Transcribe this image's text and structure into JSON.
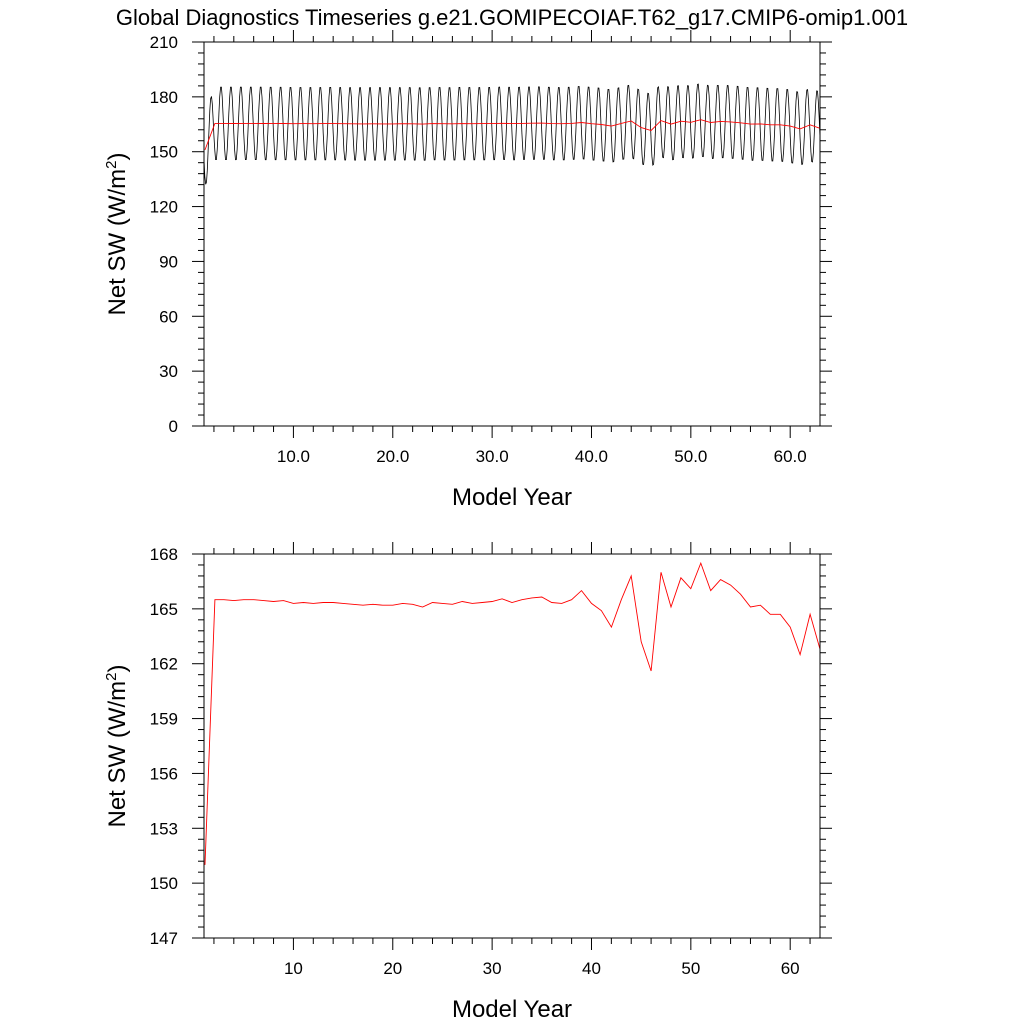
{
  "title": "Global Diagnostics Timeseries g.e21.GOMIPECOIAF.T62_g17.CMIP6-omip1.001",
  "chart_data": [
    {
      "type": "line",
      "ylabel": "Net SW (W/m",
      "ylabel_sup": "2",
      "ylabel_close": ")",
      "xlabel": "Model Year",
      "xlim": [
        1,
        63
      ],
      "ylim": [
        0,
        210
      ],
      "x_ticks": [
        10,
        20,
        30,
        40,
        50,
        60
      ],
      "x_tick_labels": [
        "10.0",
        "20.0",
        "30.0",
        "40.0",
        "50.0",
        "60.0"
      ],
      "y_ticks": [
        0,
        30,
        60,
        90,
        120,
        150,
        180,
        210
      ],
      "y_tick_labels": [
        "0",
        "30",
        "60",
        "90",
        "120",
        "150",
        "180",
        "210"
      ],
      "grid": false,
      "series": [
        {
          "color": "#000000",
          "kind": "monthly",
          "monthly_base": 164,
          "monthly_amplitude": 20.5,
          "monthly_phase_months": 8.5
        },
        {
          "color": "#ff0000",
          "kind": "annual"
        }
      ]
    },
    {
      "type": "line",
      "ylabel": "Net SW (W/m",
      "ylabel_sup": "2",
      "ylabel_close": ")",
      "xlabel": "Model Year",
      "xlim": [
        1,
        63
      ],
      "ylim": [
        147,
        168
      ],
      "x_ticks": [
        10,
        20,
        30,
        40,
        50,
        60
      ],
      "x_tick_labels": [
        "10",
        "20",
        "30",
        "40",
        "50",
        "60"
      ],
      "y_ticks": [
        147,
        150,
        153,
        156,
        159,
        162,
        165,
        168
      ],
      "y_tick_labels": [
        "147",
        "150",
        "153",
        "156",
        "159",
        "162",
        "165",
        "168"
      ],
      "grid": false,
      "series": [
        {
          "color": "#ff0000",
          "kind": "annual",
          "x": [
            1.1,
            2.1,
            3.0,
            4.0,
            5.0,
            6.0,
            7.0,
            8.0,
            9.0,
            10.0,
            11.0,
            12.0,
            13.0,
            14.0,
            15.0,
            16.0,
            17.0,
            18.0,
            19.0,
            20.0,
            21.0,
            22.0,
            23.0,
            24.0,
            25.0,
            26.0,
            27.0,
            28.0,
            29.0,
            30.0,
            31.0,
            32.0,
            33.0,
            34.0,
            35.0,
            36.0,
            37.0,
            38.0,
            39.0,
            40.0,
            41.0,
            42.0,
            43.0,
            44.0,
            45.0,
            46.0,
            47.0,
            48.0,
            49.0,
            50.0,
            51.0,
            52.0,
            53.0,
            54.0,
            55.0,
            56.0,
            57.0,
            58.0,
            59.0,
            60.0,
            61.0,
            62.0,
            63.0
          ],
          "values": [
            151.0,
            165.5,
            165.5,
            165.45,
            165.5,
            165.5,
            165.45,
            165.4,
            165.45,
            165.3,
            165.35,
            165.3,
            165.35,
            165.35,
            165.3,
            165.25,
            165.2,
            165.25,
            165.2,
            165.2,
            165.3,
            165.25,
            165.1,
            165.35,
            165.3,
            165.25,
            165.4,
            165.3,
            165.35,
            165.4,
            165.55,
            165.35,
            165.5,
            165.6,
            165.65,
            165.35,
            165.3,
            165.5,
            166.0,
            165.3,
            164.9,
            164.0,
            165.5,
            166.8,
            163.2,
            161.6,
            167.0,
            165.1,
            166.7,
            166.1,
            167.5,
            166.0,
            166.6,
            166.3,
            165.8,
            165.1,
            165.2,
            164.7,
            164.7,
            164.0,
            162.5,
            164.7,
            162.8
          ]
        }
      ]
    }
  ]
}
